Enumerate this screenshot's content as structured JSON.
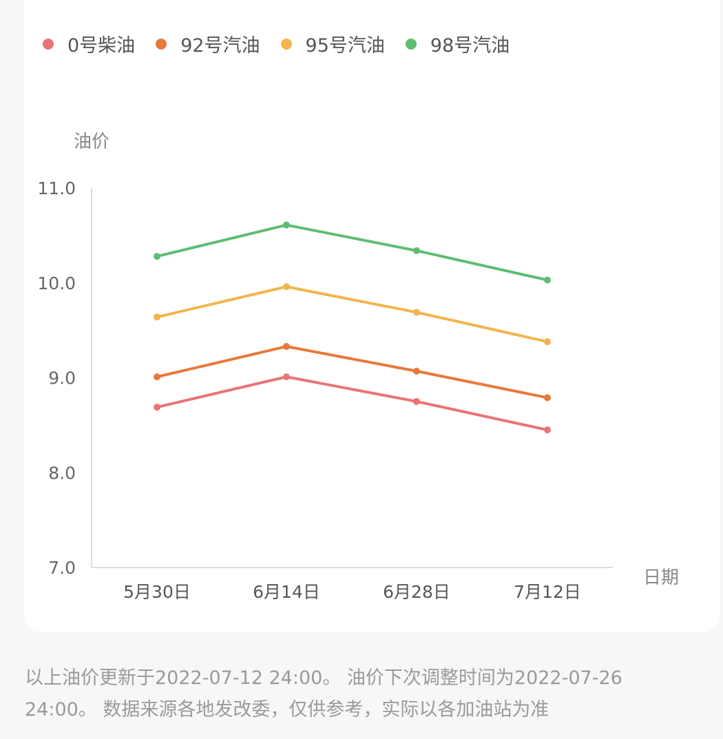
{
  "chart_data": {
    "type": "line",
    "categories": [
      "5月30日",
      "6月14日",
      "6月28日",
      "7月12日"
    ],
    "xlabel": "日期",
    "ylabel": "油价",
    "ylim": [
      7.0,
      11.0
    ],
    "yticks": [
      "7.0",
      "8.0",
      "9.0",
      "10.0",
      "11.0"
    ],
    "legend_position": "top-left",
    "grid": false,
    "series": [
      {
        "name": "0号柴油",
        "color": "#ea7474",
        "values": [
          8.69,
          9.01,
          8.75,
          8.45
        ]
      },
      {
        "name": "92号汽油",
        "color": "#e8793a",
        "values": [
          9.01,
          9.33,
          9.07,
          8.79
        ]
      },
      {
        "name": "95号汽油",
        "color": "#f3b44f",
        "values": [
          9.64,
          9.96,
          9.69,
          9.38
        ]
      },
      {
        "name": "98号汽油",
        "color": "#5fbd72",
        "values": [
          10.28,
          10.61,
          10.34,
          10.03
        ]
      }
    ]
  },
  "footer": {
    "line1": "以上油价更新于2022-07-12 24:00。 油价下次调整时间为2022-07-26",
    "line2": "24:00。 数据来源各地发改委，仅供参考，实际以各加油站为准"
  }
}
